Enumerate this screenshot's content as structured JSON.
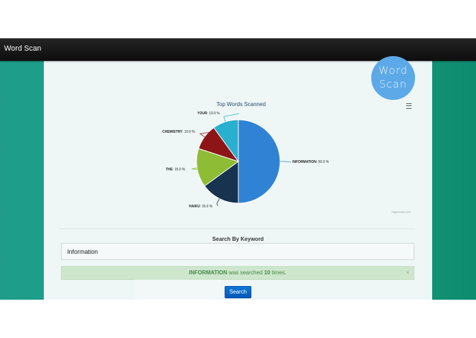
{
  "navbar": {
    "brand": "Word Scan"
  },
  "logo": {
    "line1": "Word",
    "line2": "Scan"
  },
  "chart_data": {
    "type": "pie",
    "title": "Top Words Scanned",
    "slices": [
      {
        "name": "INFORMATION",
        "value": 50.0,
        "color": "#3083d4",
        "label": "50.0 %"
      },
      {
        "name": "HAIKU",
        "value": 15.0,
        "color": "#17334f",
        "label": "15.0 %"
      },
      {
        "name": "THE",
        "value": 15.0,
        "color": "#8ebc35",
        "label": "15.0 %"
      },
      {
        "name": "CHEMISTRY",
        "value": 10.0,
        "color": "#8d1517",
        "label": "10.0 %"
      },
      {
        "name": "YOUR",
        "value": 10.0,
        "color": "#2ab0cf",
        "label": "10.0 %"
      }
    ],
    "credit": "Highcharts.com"
  },
  "search": {
    "heading": "Search By Keyword",
    "input_value": "Information",
    "button_label": "Search"
  },
  "alert": {
    "keyword": "INFORMATION",
    "middle_text": "was searched",
    "count": "10",
    "suffix": "times.",
    "close_symbol": "×"
  },
  "colors": {
    "accent": "#0c78d6",
    "teal_background": "#1a9a85",
    "alert_bg": "#cde6cc"
  },
  "icons": {
    "menu": "menu-icon",
    "close": "close-icon"
  }
}
